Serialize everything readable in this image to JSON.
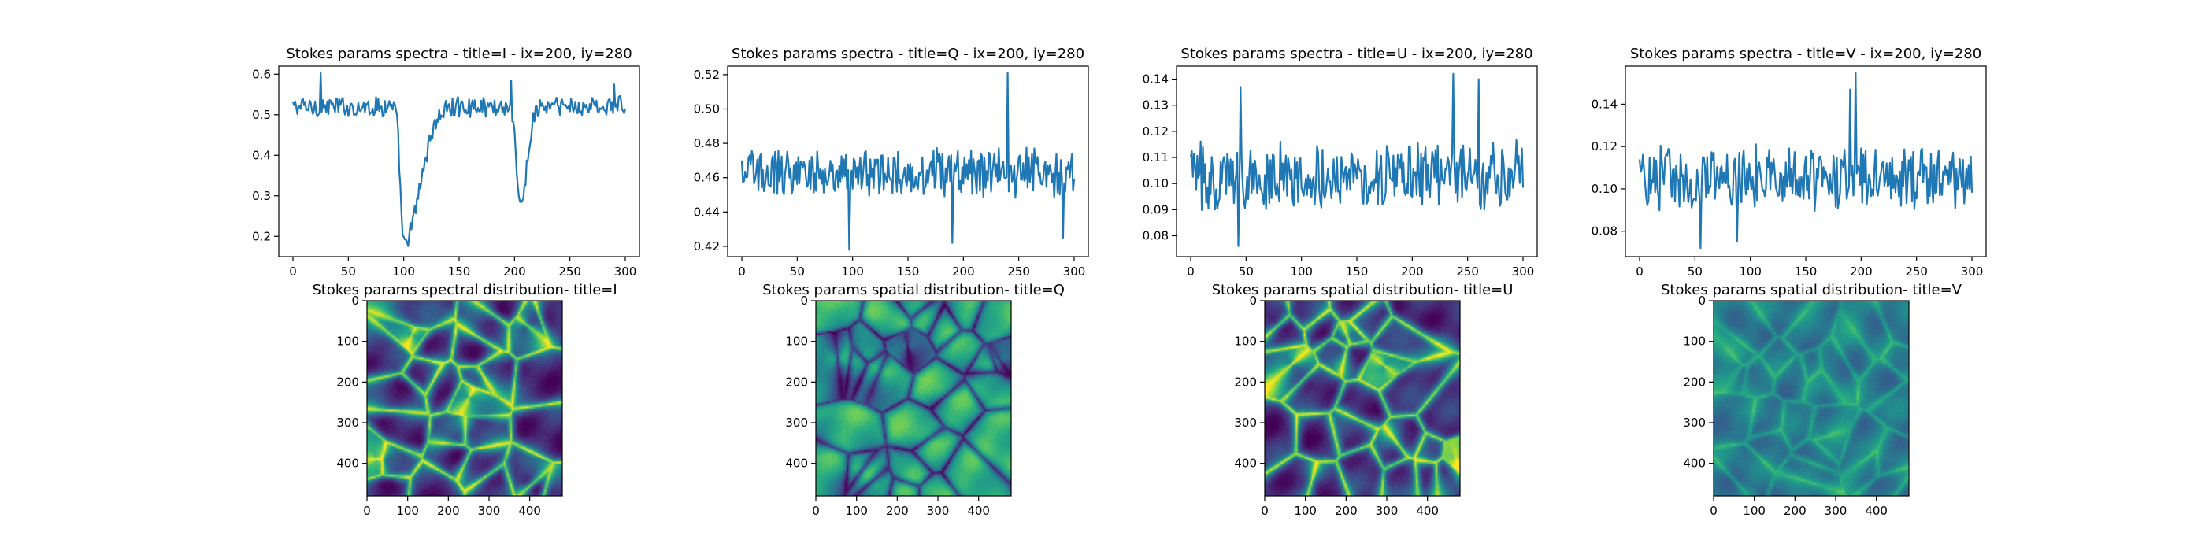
{
  "chart_data": [
    {
      "type": "line",
      "title": "Stokes params spectra - title=I - ix=200, iy=280",
      "xlim": [
        0,
        300
      ],
      "ylim": [
        0.15,
        0.62
      ],
      "x_ticks": [
        0,
        50,
        100,
        150,
        200,
        250,
        300
      ],
      "y_ticks": [
        0.2,
        0.3,
        0.4,
        0.5,
        0.6
      ],
      "y_tick_labels": [
        "0.2",
        "0.3",
        "0.4",
        "0.5",
        "0.6"
      ],
      "series": [
        {
          "color": "#1f77b4",
          "baseline": 0.52,
          "noise": 0.022,
          "dips": [
            {
              "center": 100,
              "depth": 0.34,
              "left_width": 3,
              "right_width": 14
            },
            {
              "center": 205,
              "depth": 0.25,
              "left_width": 3,
              "right_width": 6
            }
          ],
          "peaks": [
            [
              25,
              0.605
            ],
            [
              197,
              0.585
            ],
            [
              290,
              0.575
            ]
          ]
        }
      ],
      "grid": false
    },
    {
      "type": "line",
      "title": "Stokes params spectra - title=Q - ix=200, iy=280",
      "xlim": [
        0,
        300
      ],
      "ylim": [
        0.414,
        0.525
      ],
      "x_ticks": [
        0,
        50,
        100,
        150,
        200,
        250,
        300
      ],
      "y_ticks": [
        0.42,
        0.44,
        0.46,
        0.48,
        0.5,
        0.52
      ],
      "y_tick_labels": [
        "0.42",
        "0.44",
        "0.46",
        "0.48",
        "0.50",
        "0.52"
      ],
      "series": [
        {
          "color": "#1f77b4",
          "baseline": 0.463,
          "noise": 0.012,
          "dips": [],
          "peaks": [
            [
              240,
              0.521
            ],
            [
              97,
              0.418
            ],
            [
              190,
              0.422
            ],
            [
              290,
              0.425
            ]
          ]
        }
      ],
      "grid": false
    },
    {
      "type": "line",
      "title": "Stokes params spectra - title=U - ix=200, iy=280",
      "xlim": [
        0,
        300
      ],
      "ylim": [
        0.072,
        0.145
      ],
      "x_ticks": [
        0,
        50,
        100,
        150,
        200,
        250,
        300
      ],
      "y_ticks": [
        0.08,
        0.09,
        0.1,
        0.11,
        0.12,
        0.13,
        0.14
      ],
      "y_tick_labels": [
        "0.08",
        "0.09",
        "0.10",
        "0.11",
        "0.12",
        "0.13",
        "0.14"
      ],
      "series": [
        {
          "color": "#1f77b4",
          "baseline": 0.103,
          "noise": 0.011,
          "dips": [],
          "peaks": [
            [
              43,
              0.076
            ],
            [
              237,
              0.142
            ],
            [
              260,
              0.14
            ],
            [
              45,
              0.137
            ]
          ]
        }
      ],
      "grid": false
    },
    {
      "type": "line",
      "title": "Stokes params spectra - title=V - ix=200, iy=280",
      "xlim": [
        0,
        300
      ],
      "ylim": [
        0.068,
        0.158
      ],
      "x_ticks": [
        0,
        50,
        100,
        150,
        200,
        250,
        300
      ],
      "y_ticks": [
        0.08,
        0.1,
        0.12,
        0.14
      ],
      "y_tick_labels": [
        "0.08",
        "0.10",
        "0.12",
        "0.14"
      ],
      "series": [
        {
          "color": "#1f77b4",
          "baseline": 0.105,
          "noise": 0.013,
          "dips": [],
          "peaks": [
            [
              195,
              0.155
            ],
            [
              190,
              0.147
            ],
            [
              55,
              0.072
            ],
            [
              88,
              0.075
            ]
          ]
        }
      ],
      "grid": false
    },
    {
      "type": "heatmap",
      "title": "Stokes params spectral distribution- title=I",
      "colormap": "viridis",
      "xlim": [
        0,
        480
      ],
      "ylim": [
        480,
        0
      ],
      "x_ticks": [
        0,
        100,
        200,
        300,
        400
      ],
      "y_ticks": [
        0,
        100,
        200,
        300,
        400
      ],
      "pattern": "bright-lanes-dark-cells"
    },
    {
      "type": "heatmap",
      "title": "Stokes params spatial distribution- title=Q",
      "colormap": "viridis",
      "xlim": [
        0,
        480
      ],
      "ylim": [
        480,
        0
      ],
      "x_ticks": [
        0,
        100,
        200,
        300,
        400
      ],
      "y_ticks": [
        0,
        100,
        200,
        300,
        400
      ],
      "pattern": "dark-lanes-bright-cells"
    },
    {
      "type": "heatmap",
      "title": "Stokes params spatial distribution- title=U",
      "colormap": "viridis",
      "xlim": [
        0,
        480
      ],
      "ylim": [
        480,
        0
      ],
      "x_ticks": [
        0,
        100,
        200,
        300,
        400
      ],
      "y_ticks": [
        0,
        100,
        200,
        300,
        400
      ],
      "pattern": "bright-lanes-dark-cells"
    },
    {
      "type": "heatmap",
      "title": "Stokes params spatial distribution- title=V",
      "colormap": "viridis",
      "xlim": [
        0,
        480
      ],
      "ylim": [
        480,
        0
      ],
      "x_ticks": [
        0,
        100,
        200,
        300,
        400
      ],
      "y_ticks": [
        0,
        100,
        200,
        300,
        400
      ],
      "pattern": "mid-tone-mixed"
    }
  ]
}
